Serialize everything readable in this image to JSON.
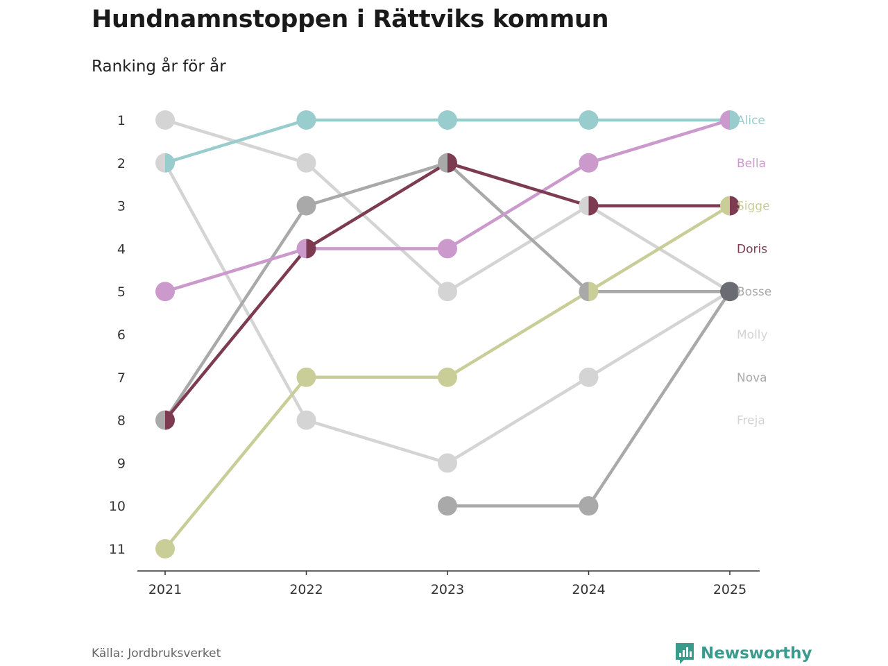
{
  "title": "Hundnamnstoppen i Rättviks kommun",
  "subtitle": "Ranking år för år",
  "source": "Källa: Jordbruksverket",
  "brand": {
    "name": "Newsworthy",
    "icon": "bar-chart-speech-bubble-icon",
    "color": "#3a9a8c"
  },
  "chart_data": {
    "type": "line",
    "subtype": "bump",
    "title": "Hundnamnstoppen i Rättviks kommun",
    "subtitle": "Ranking år för år",
    "x": [
      "2021",
      "2022",
      "2023",
      "2024",
      "2025"
    ],
    "y_ticks": [
      "1",
      "2",
      "3",
      "4",
      "5",
      "6",
      "7",
      "8",
      "9",
      "10",
      "11"
    ],
    "ylim": [
      1,
      11
    ],
    "y_inverted": true,
    "legend_position": "right",
    "series": [
      {
        "name": "Molly",
        "color": "#d4d4d4",
        "ranks": [
          1,
          2,
          5,
          3,
          5
        ]
      },
      {
        "name": "Freja",
        "color": "#d4d4d4",
        "ranks": [
          2,
          8,
          9,
          7,
          5
        ]
      },
      {
        "name": "Nova",
        "color": "#a9a9a9",
        "ranks": [
          8,
          3,
          2,
          5,
          5
        ]
      },
      {
        "name": "Bosse",
        "color": "#a9a9a9",
        "ranks": [
          null,
          null,
          10,
          10,
          5
        ]
      },
      {
        "name": "Sigge",
        "color": "#c9cd97",
        "ranks": [
          11,
          7,
          7,
          5,
          3
        ]
      },
      {
        "name": "Bella",
        "color": "#cc99cc",
        "ranks": [
          5,
          4,
          4,
          2,
          1
        ]
      },
      {
        "name": "Doris",
        "color": "#7d3b52",
        "ranks": [
          8,
          4,
          2,
          3,
          3
        ]
      },
      {
        "name": "Alice",
        "color": "#99cccc",
        "ranks": [
          2,
          1,
          1,
          1,
          1
        ]
      }
    ],
    "end_labels": [
      {
        "name": "Alice",
        "color": "#99cccc"
      },
      {
        "name": "Bella",
        "color": "#cc99cc"
      },
      {
        "name": "Sigge",
        "color": "#c9cd97"
      },
      {
        "name": "Doris",
        "color": "#7d3b52"
      },
      {
        "name": "Bosse",
        "color": "#a9a9a9"
      },
      {
        "name": "Molly",
        "color": "#d4d4d4"
      },
      {
        "name": "Nova",
        "color": "#a9a9a9"
      },
      {
        "name": "Freja",
        "color": "#d4d4d4"
      }
    ],
    "overlap_color": "#6b6b73"
  }
}
